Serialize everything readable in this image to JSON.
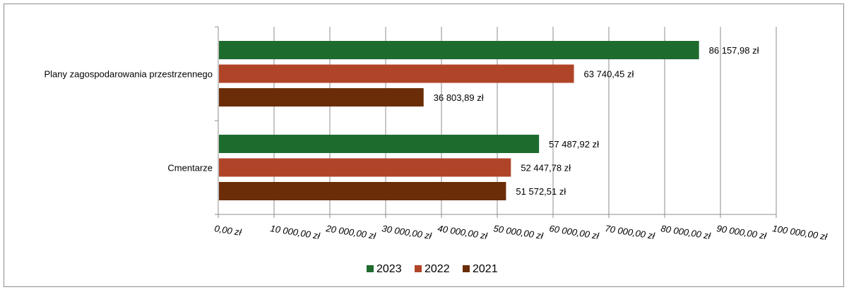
{
  "chart_data": {
    "type": "bar",
    "orientation": "horizontal",
    "title": "",
    "xlabel": "",
    "ylabel": "",
    "categories": [
      "Plany zagospodarowania przestrzennego",
      "Cmentarze"
    ],
    "series": [
      {
        "name": "2023",
        "color": "#1e6b2e",
        "values": [
          86157.98,
          57487.92
        ],
        "labels": [
          "86 157,98 zł",
          "57 487,92 zł"
        ]
      },
      {
        "name": "2022",
        "color": "#b04428",
        "values": [
          63740.45,
          52447.78
        ],
        "labels": [
          "63 740,45 zł",
          "52 447,78 zł"
        ]
      },
      {
        "name": "2021",
        "color": "#6b2d07",
        "values": [
          36803.89,
          51572.51
        ],
        "labels": [
          "36 803,89 zł",
          "51 572,51 zł"
        ]
      }
    ],
    "xlim": [
      0,
      100000
    ],
    "x_ticks": [
      0,
      10000,
      20000,
      30000,
      40000,
      50000,
      60000,
      70000,
      80000,
      90000,
      100000
    ],
    "x_tick_labels": [
      "0,00 zł",
      "10 000,00 zł",
      "20 000,00 zł",
      "30 000,00 zł",
      "40 000,00 zł",
      "50 000,00 zł",
      "60 000,00 zł",
      "70 000,00 zł",
      "80 000,00 zł",
      "90 000,00 zł",
      "100 000,00 zł"
    ],
    "grid": true,
    "legend_position": "bottom"
  }
}
